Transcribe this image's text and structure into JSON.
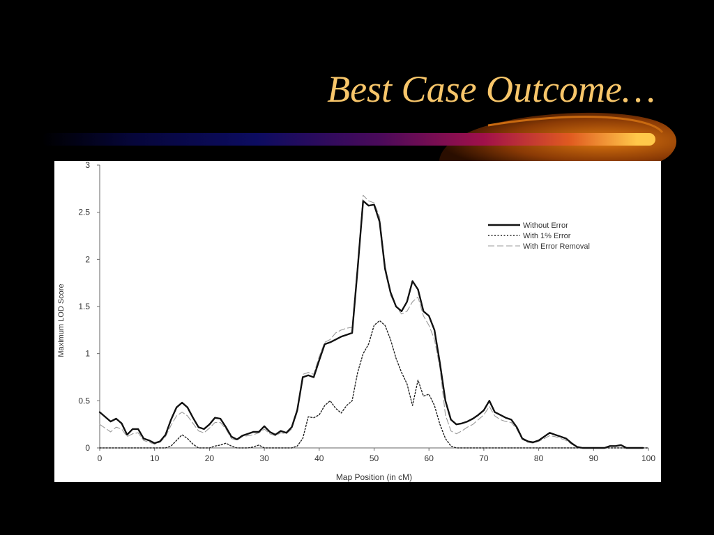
{
  "slide": {
    "title": "Best Case Outcome…"
  },
  "chart_data": {
    "type": "line",
    "title": "",
    "xlabel": "Map Position (in cM)",
    "ylabel": "Maximum LOD Score",
    "xlim": [
      0,
      100
    ],
    "ylim": [
      0,
      3
    ],
    "xticks": [
      0,
      10,
      20,
      30,
      40,
      50,
      60,
      70,
      80,
      90,
      100
    ],
    "yticks": [
      0,
      0.5,
      1,
      1.5,
      2,
      2.5,
      3
    ],
    "ytick_labels": [
      "0",
      "0.5",
      "1",
      "1.5",
      "2",
      "2.5",
      "3"
    ],
    "grid": false,
    "legend_position": "top-right",
    "series": [
      {
        "name": "Without Error",
        "style": "solid-thick",
        "color": "#111111",
        "x": [
          0,
          2,
          3,
          4,
          5,
          6,
          7,
          8,
          9,
          10,
          11,
          12,
          13,
          14,
          15,
          16,
          17,
          18,
          19,
          20,
          21,
          22,
          23,
          24,
          25,
          26,
          27,
          28,
          29,
          30,
          31,
          32,
          33,
          34,
          35,
          36,
          37,
          38,
          39,
          40,
          41,
          42,
          43,
          44,
          45,
          46,
          47,
          48,
          49,
          50,
          51,
          52,
          53,
          54,
          55,
          56,
          57,
          58,
          59,
          60,
          61,
          62,
          63,
          64,
          65,
          66,
          67,
          68,
          69,
          70,
          71,
          72,
          73,
          74,
          75,
          76,
          77,
          78,
          79,
          80,
          81,
          82,
          83,
          84,
          85,
          86,
          87,
          88,
          89,
          90,
          91,
          92,
          93,
          94,
          95,
          96,
          97,
          98,
          99
        ],
        "y": [
          0.38,
          0.28,
          0.31,
          0.26,
          0.14,
          0.2,
          0.2,
          0.1,
          0.08,
          0.05,
          0.07,
          0.14,
          0.3,
          0.43,
          0.48,
          0.43,
          0.32,
          0.22,
          0.2,
          0.25,
          0.32,
          0.31,
          0.22,
          0.12,
          0.09,
          0.13,
          0.15,
          0.17,
          0.17,
          0.23,
          0.17,
          0.14,
          0.18,
          0.16,
          0.22,
          0.4,
          0.75,
          0.77,
          0.75,
          0.93,
          1.1,
          1.12,
          1.15,
          1.18,
          1.2,
          1.22,
          1.9,
          2.62,
          2.57,
          2.58,
          2.4,
          1.9,
          1.65,
          1.5,
          1.45,
          1.55,
          1.77,
          1.68,
          1.45,
          1.4,
          1.25,
          0.9,
          0.5,
          0.3,
          0.25,
          0.26,
          0.28,
          0.31,
          0.35,
          0.4,
          0.5,
          0.38,
          0.35,
          0.32,
          0.3,
          0.22,
          0.1,
          0.07,
          0.06,
          0.08,
          0.12,
          0.16,
          0.14,
          0.12,
          0.1,
          0.05,
          0.01,
          0,
          0,
          0,
          0,
          0,
          0.02,
          0.02,
          0.03,
          0,
          0,
          0,
          0
        ]
      },
      {
        "name": "With 1% Error",
        "style": "dotted",
        "color": "#222222",
        "x": [
          0,
          5,
          10,
          12,
          13,
          14,
          15,
          16,
          17,
          18,
          20,
          21,
          22,
          23,
          24,
          25,
          26,
          27,
          28,
          29,
          30,
          34,
          35,
          36,
          37,
          38,
          39,
          40,
          41,
          42,
          43,
          44,
          45,
          46,
          47,
          48,
          49,
          50,
          51,
          52,
          53,
          54,
          55,
          56,
          57,
          58,
          59,
          60,
          61,
          62,
          63,
          64,
          65,
          100
        ],
        "y": [
          0,
          0,
          0,
          0,
          0.02,
          0.08,
          0.14,
          0.1,
          0.04,
          0,
          0,
          0.02,
          0.03,
          0.05,
          0.02,
          0,
          0,
          0,
          0.01,
          0.03,
          0,
          0,
          0,
          0.02,
          0.1,
          0.33,
          0.32,
          0.35,
          0.45,
          0.5,
          0.42,
          0.37,
          0.45,
          0.5,
          0.8,
          1.0,
          1.1,
          1.3,
          1.35,
          1.3,
          1.15,
          0.95,
          0.8,
          0.68,
          0.45,
          0.72,
          0.55,
          0.57,
          0.45,
          0.25,
          0.1,
          0.02,
          0,
          0
        ]
      },
      {
        "name": "With Error Removal",
        "style": "dashed-light",
        "color": "#9a9a9a",
        "x": [
          0,
          2,
          3,
          4,
          5,
          6,
          7,
          8,
          9,
          10,
          11,
          12,
          13,
          14,
          15,
          16,
          17,
          18,
          19,
          20,
          21,
          22,
          23,
          24,
          25,
          26,
          27,
          28,
          29,
          30,
          31,
          32,
          33,
          34,
          35,
          36,
          37,
          38,
          39,
          40,
          41,
          42,
          43,
          44,
          45,
          46,
          47,
          48,
          49,
          50,
          51,
          52,
          53,
          54,
          55,
          56,
          57,
          58,
          59,
          60,
          61,
          62,
          63,
          64,
          65,
          66,
          67,
          68,
          69,
          70,
          71,
          72,
          73,
          74,
          75,
          76,
          77,
          78,
          79,
          80,
          81,
          82,
          83,
          84,
          85,
          86,
          87,
          88,
          89,
          90,
          95,
          99
        ],
        "y": [
          0.25,
          0.17,
          0.22,
          0.2,
          0.12,
          0.15,
          0.16,
          0.08,
          0.06,
          0.04,
          0.06,
          0.12,
          0.24,
          0.34,
          0.38,
          0.34,
          0.26,
          0.18,
          0.16,
          0.21,
          0.27,
          0.27,
          0.2,
          0.1,
          0.08,
          0.12,
          0.13,
          0.14,
          0.16,
          0.2,
          0.15,
          0.13,
          0.16,
          0.15,
          0.2,
          0.38,
          0.78,
          0.8,
          0.78,
          0.97,
          1.12,
          1.15,
          1.22,
          1.25,
          1.27,
          1.28,
          1.95,
          2.68,
          2.62,
          2.6,
          2.45,
          1.95,
          1.62,
          1.5,
          1.42,
          1.45,
          1.55,
          1.6,
          1.4,
          1.3,
          1.15,
          0.85,
          0.35,
          0.18,
          0.15,
          0.18,
          0.22,
          0.25,
          0.3,
          0.35,
          0.44,
          0.34,
          0.3,
          0.28,
          0.27,
          0.2,
          0.09,
          0.06,
          0.05,
          0.07,
          0.1,
          0.13,
          0.12,
          0.1,
          0.08,
          0.04,
          0.01,
          0,
          0,
          0,
          0,
          0
        ]
      }
    ]
  },
  "colors": {
    "title": "#f8c66a",
    "background": "#000000",
    "figure_background": "#ffffff",
    "axis": "#666666"
  }
}
